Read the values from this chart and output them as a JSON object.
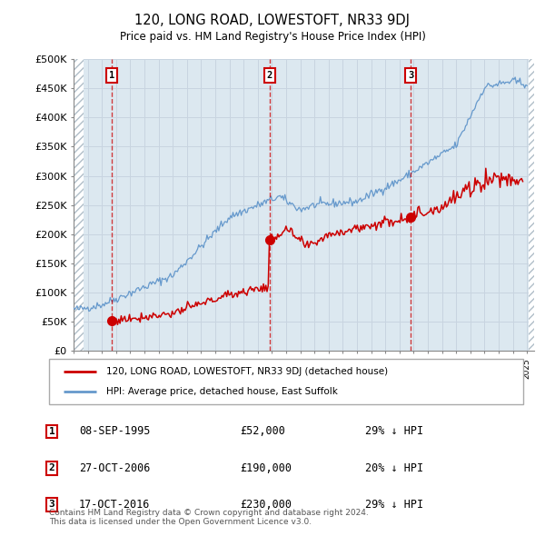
{
  "title": "120, LONG ROAD, LOWESTOFT, NR33 9DJ",
  "subtitle": "Price paid vs. HM Land Registry's House Price Index (HPI)",
  "ylabel_ticks": [
    "£0",
    "£50K",
    "£100K",
    "£150K",
    "£200K",
    "£250K",
    "£300K",
    "£350K",
    "£400K",
    "£450K",
    "£500K"
  ],
  "ytick_values": [
    0,
    50000,
    100000,
    150000,
    200000,
    250000,
    300000,
    350000,
    400000,
    450000,
    500000
  ],
  "ylim": [
    0,
    500000
  ],
  "sale_year_floats": [
    1995.69,
    2006.82,
    2016.79
  ],
  "sale_prices": [
    52000,
    190000,
    230000
  ],
  "sale_labels": [
    "1",
    "2",
    "3"
  ],
  "sale_table": [
    [
      "1",
      "08-SEP-1995",
      "£52,000",
      "29% ↓ HPI"
    ],
    [
      "2",
      "27-OCT-2006",
      "£190,000",
      "20% ↓ HPI"
    ],
    [
      "3",
      "17-OCT-2016",
      "£230,000",
      "29% ↓ HPI"
    ]
  ],
  "red_line_color": "#cc0000",
  "blue_line_color": "#6699cc",
  "grid_color": "#c8d4e0",
  "bg_color": "#dce8f0",
  "hatch_edgecolor": "#b0bec8",
  "legend_label_red": "120, LONG ROAD, LOWESTOFT, NR33 9DJ (detached house)",
  "legend_label_blue": "HPI: Average price, detached house, East Suffolk",
  "footnote": "Contains HM Land Registry data © Crown copyright and database right 2024.\nThis data is licensed under the Open Government Licence v3.0.",
  "xstart_year": 1993,
  "xend_year": 2025
}
